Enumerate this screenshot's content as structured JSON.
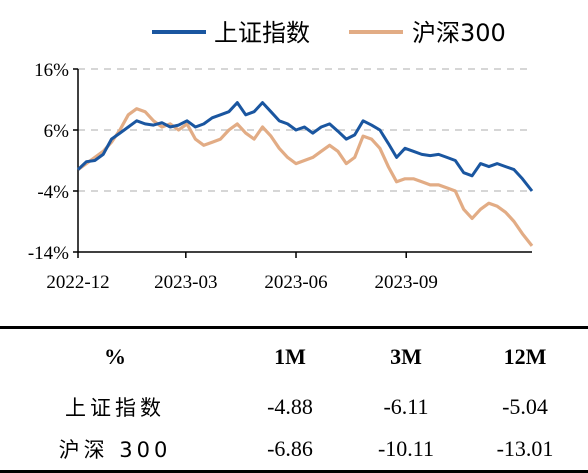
{
  "chart_data": {
    "type": "line",
    "legend_position": "top",
    "grid": "horizontal-dashed",
    "ylim": [
      -14,
      16
    ],
    "y_ticks": [
      "16%",
      "6%",
      "-4%",
      "-14%"
    ],
    "y_tick_values": [
      16,
      6,
      -4,
      -14
    ],
    "x_ticks": [
      "2022-12",
      "2023-03",
      "2023-06",
      "2023-09"
    ],
    "x_tick_dates": [
      "2022-12-01",
      "2023-03-01",
      "2023-06-01",
      "2023-09-01"
    ],
    "x_range": [
      "2022-12-01",
      "2023-12-15"
    ],
    "series": [
      {
        "name": "上证指数",
        "color": "#1a56a0",
        "points": [
          [
            "2022-12-01",
            -0.5
          ],
          [
            "2022-12-08",
            0.8
          ],
          [
            "2022-12-15",
            1.0
          ],
          [
            "2022-12-22",
            2.0
          ],
          [
            "2022-12-29",
            4.5
          ],
          [
            "2023-01-05",
            5.5
          ],
          [
            "2023-01-12",
            6.5
          ],
          [
            "2023-01-19",
            7.5
          ],
          [
            "2023-01-26",
            7.0
          ],
          [
            "2023-02-02",
            6.8
          ],
          [
            "2023-02-09",
            7.2
          ],
          [
            "2023-02-16",
            6.5
          ],
          [
            "2023-02-23",
            6.8
          ],
          [
            "2023-03-02",
            7.5
          ],
          [
            "2023-03-09",
            6.5
          ],
          [
            "2023-03-16",
            7.0
          ],
          [
            "2023-03-23",
            8.0
          ],
          [
            "2023-03-30",
            8.5
          ],
          [
            "2023-04-06",
            9.0
          ],
          [
            "2023-04-13",
            10.5
          ],
          [
            "2023-04-20",
            8.5
          ],
          [
            "2023-04-27",
            9.0
          ],
          [
            "2023-05-04",
            10.5
          ],
          [
            "2023-05-11",
            9.0
          ],
          [
            "2023-05-18",
            7.5
          ],
          [
            "2023-05-25",
            7.0
          ],
          [
            "2023-06-01",
            6.0
          ],
          [
            "2023-06-08",
            6.5
          ],
          [
            "2023-06-15",
            5.5
          ],
          [
            "2023-06-22",
            6.5
          ],
          [
            "2023-06-29",
            7.0
          ],
          [
            "2023-07-06",
            5.8
          ],
          [
            "2023-07-13",
            4.5
          ],
          [
            "2023-07-20",
            5.2
          ],
          [
            "2023-07-27",
            7.5
          ],
          [
            "2023-08-03",
            6.8
          ],
          [
            "2023-08-10",
            6.0
          ],
          [
            "2023-08-17",
            3.8
          ],
          [
            "2023-08-24",
            1.5
          ],
          [
            "2023-08-31",
            3.0
          ],
          [
            "2023-09-07",
            2.5
          ],
          [
            "2023-09-14",
            2.0
          ],
          [
            "2023-09-21",
            1.8
          ],
          [
            "2023-09-28",
            2.0
          ],
          [
            "2023-10-05",
            1.5
          ],
          [
            "2023-10-12",
            1.0
          ],
          [
            "2023-10-19",
            -1.0
          ],
          [
            "2023-10-26",
            -1.5
          ],
          [
            "2023-11-02",
            0.5
          ],
          [
            "2023-11-09",
            0.0
          ],
          [
            "2023-11-16",
            0.5
          ],
          [
            "2023-11-23",
            0.0
          ],
          [
            "2023-11-30",
            -0.5
          ],
          [
            "2023-12-07",
            -2.0
          ],
          [
            "2023-12-15",
            -4.0
          ]
        ]
      },
      {
        "name": "沪深300",
        "color": "#e2ac85",
        "points": [
          [
            "2022-12-01",
            -0.5
          ],
          [
            "2022-12-08",
            0.5
          ],
          [
            "2022-12-15",
            1.5
          ],
          [
            "2022-12-22",
            2.5
          ],
          [
            "2022-12-29",
            4.0
          ],
          [
            "2023-01-05",
            6.0
          ],
          [
            "2023-01-12",
            8.5
          ],
          [
            "2023-01-19",
            9.5
          ],
          [
            "2023-01-26",
            9.0
          ],
          [
            "2023-02-02",
            7.5
          ],
          [
            "2023-02-09",
            6.5
          ],
          [
            "2023-02-16",
            7.0
          ],
          [
            "2023-02-23",
            6.0
          ],
          [
            "2023-03-02",
            7.0
          ],
          [
            "2023-03-09",
            4.5
          ],
          [
            "2023-03-16",
            3.5
          ],
          [
            "2023-03-23",
            4.0
          ],
          [
            "2023-03-30",
            4.5
          ],
          [
            "2023-04-06",
            6.0
          ],
          [
            "2023-04-13",
            7.0
          ],
          [
            "2023-04-20",
            5.5
          ],
          [
            "2023-04-27",
            4.5
          ],
          [
            "2023-05-04",
            6.5
          ],
          [
            "2023-05-11",
            5.0
          ],
          [
            "2023-05-18",
            3.0
          ],
          [
            "2023-05-25",
            1.5
          ],
          [
            "2023-06-01",
            0.5
          ],
          [
            "2023-06-08",
            1.0
          ],
          [
            "2023-06-15",
            1.5
          ],
          [
            "2023-06-22",
            2.5
          ],
          [
            "2023-06-29",
            3.5
          ],
          [
            "2023-07-06",
            2.5
          ],
          [
            "2023-07-13",
            0.5
          ],
          [
            "2023-07-20",
            1.5
          ],
          [
            "2023-07-27",
            5.0
          ],
          [
            "2023-08-03",
            4.5
          ],
          [
            "2023-08-10",
            3.0
          ],
          [
            "2023-08-17",
            0.0
          ],
          [
            "2023-08-24",
            -2.5
          ],
          [
            "2023-08-31",
            -2.0
          ],
          [
            "2023-09-07",
            -2.0
          ],
          [
            "2023-09-14",
            -2.5
          ],
          [
            "2023-09-21",
            -3.0
          ],
          [
            "2023-09-28",
            -3.0
          ],
          [
            "2023-10-05",
            -3.5
          ],
          [
            "2023-10-12",
            -4.0
          ],
          [
            "2023-10-19",
            -7.0
          ],
          [
            "2023-10-26",
            -8.5
          ],
          [
            "2023-11-02",
            -7.0
          ],
          [
            "2023-11-09",
            -6.0
          ],
          [
            "2023-11-16",
            -6.5
          ],
          [
            "2023-11-23",
            -7.5
          ],
          [
            "2023-11-30",
            -9.0
          ],
          [
            "2023-12-07",
            -11.0
          ],
          [
            "2023-12-15",
            -13.0
          ]
        ]
      }
    ]
  },
  "table": {
    "headers": [
      "%",
      "1M",
      "3M",
      "12M"
    ],
    "rows": [
      [
        "上证指数",
        "-4.88",
        "-6.11",
        "-5.04"
      ],
      [
        "沪深 300",
        "-6.86",
        "-10.11",
        "-13.01"
      ]
    ]
  }
}
